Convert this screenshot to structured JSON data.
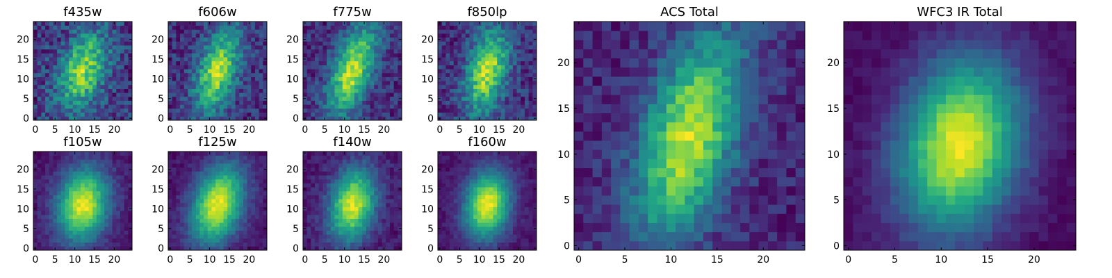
{
  "chart_data": [
    {
      "type": "heatmap",
      "title": "f435w",
      "xticks": [
        "0",
        "5",
        "10",
        "15",
        "20"
      ],
      "yticks": [
        "0",
        "5",
        "10",
        "15",
        "20"
      ],
      "xlim": [
        -0.5,
        24.5
      ],
      "ylim": [
        -0.5,
        24.5
      ],
      "grid": false,
      "colormap": "viridis",
      "source": {
        "center": [
          12,
          12
        ],
        "sigma": [
          4.0,
          7.0
        ],
        "noise": 0.45,
        "tilt": 0.25
      }
    },
    {
      "type": "heatmap",
      "title": "f606w",
      "xticks": [
        "0",
        "5",
        "10",
        "15",
        "20"
      ],
      "yticks": [
        "0",
        "5",
        "10",
        "15",
        "20"
      ],
      "xlim": [
        -0.5,
        24.5
      ],
      "ylim": [
        -0.5,
        24.5
      ],
      "grid": false,
      "colormap": "viridis",
      "source": {
        "center": [
          12,
          12
        ],
        "sigma": [
          3.5,
          7.5
        ],
        "noise": 0.35,
        "tilt": 0.25
      }
    },
    {
      "type": "heatmap",
      "title": "f775w",
      "xticks": [
        "0",
        "5",
        "10",
        "15",
        "20"
      ],
      "yticks": [
        "0",
        "5",
        "10",
        "15",
        "20"
      ],
      "xlim": [
        -0.5,
        24.5
      ],
      "ylim": [
        -0.5,
        24.5
      ],
      "grid": false,
      "colormap": "viridis",
      "source": {
        "center": [
          12,
          12
        ],
        "sigma": [
          3.5,
          8.0
        ],
        "noise": 0.3,
        "tilt": 0.3
      }
    },
    {
      "type": "heatmap",
      "title": "f850lp",
      "xticks": [
        "0",
        "5",
        "10",
        "15",
        "20"
      ],
      "yticks": [
        "0",
        "5",
        "10",
        "15",
        "20"
      ],
      "xlim": [
        -0.5,
        24.5
      ],
      "ylim": [
        -0.5,
        24.5
      ],
      "grid": false,
      "colormap": "viridis",
      "source": {
        "center": [
          12,
          12
        ],
        "sigma": [
          3.5,
          7.5
        ],
        "noise": 0.35,
        "tilt": 0.2
      }
    },
    {
      "type": "heatmap",
      "title": "f105w",
      "xticks": [
        "0",
        "5",
        "10",
        "15",
        "20"
      ],
      "yticks": [
        "0",
        "5",
        "10",
        "15",
        "20"
      ],
      "xlim": [
        -0.5,
        24.5
      ],
      "ylim": [
        -0.5,
        24.5
      ],
      "grid": false,
      "colormap": "viridis",
      "source": {
        "center": [
          12,
          11
        ],
        "sigma": [
          4.5,
          6.5
        ],
        "noise": 0.12,
        "tilt": 0.1
      }
    },
    {
      "type": "heatmap",
      "title": "f125w",
      "xticks": [
        "0",
        "5",
        "10",
        "15",
        "20"
      ],
      "yticks": [
        "0",
        "5",
        "10",
        "15",
        "20"
      ],
      "xlim": [
        -0.5,
        24.5
      ],
      "ylim": [
        -0.5,
        24.5
      ],
      "grid": false,
      "colormap": "viridis",
      "source": {
        "center": [
          12,
          11
        ],
        "sigma": [
          4.5,
          7.0
        ],
        "noise": 0.12,
        "tilt": 0.2
      }
    },
    {
      "type": "heatmap",
      "title": "f140w",
      "xticks": [
        "0",
        "5",
        "10",
        "15",
        "20"
      ],
      "yticks": [
        "0",
        "5",
        "10",
        "15",
        "20"
      ],
      "xlim": [
        -0.5,
        24.5
      ],
      "ylim": [
        -0.5,
        24.5
      ],
      "grid": false,
      "colormap": "viridis",
      "source": {
        "center": [
          12,
          11
        ],
        "sigma": [
          4.0,
          6.5
        ],
        "noise": 0.15,
        "tilt": 0.15
      }
    },
    {
      "type": "heatmap",
      "title": "f160w",
      "xticks": [
        "0",
        "5",
        "10",
        "15",
        "20"
      ],
      "yticks": [
        "0",
        "5",
        "10",
        "15",
        "20"
      ],
      "xlim": [
        -0.5,
        24.5
      ],
      "ylim": [
        -0.5,
        24.5
      ],
      "grid": false,
      "colormap": "viridis",
      "source": {
        "center": [
          12,
          11
        ],
        "sigma": [
          4.0,
          6.0
        ],
        "noise": 0.1,
        "tilt": 0.1
      }
    },
    {
      "type": "heatmap",
      "title": "ACS Total",
      "xticks": [
        "0",
        "5",
        "10",
        "15",
        "20"
      ],
      "yticks": [
        "0",
        "5",
        "10",
        "15",
        "20"
      ],
      "xlim": [
        -0.5,
        24.5
      ],
      "ylim": [
        -0.5,
        24.5
      ],
      "grid": false,
      "colormap": "viridis",
      "source": {
        "center": [
          12,
          12
        ],
        "sigma": [
          3.5,
          8.0
        ],
        "noise": 0.22,
        "tilt": 0.25
      }
    },
    {
      "type": "heatmap",
      "title": "WFC3 IR Total",
      "xticks": [
        "0",
        "5",
        "10",
        "15",
        "20"
      ],
      "yticks": [
        "0",
        "5",
        "10",
        "15",
        "20"
      ],
      "xlim": [
        -0.5,
        24.5
      ],
      "ylim": [
        -0.5,
        24.5
      ],
      "grid": false,
      "colormap": "viridis",
      "source": {
        "center": [
          12,
          11
        ],
        "sigma": [
          4.5,
          6.5
        ],
        "noise": 0.08,
        "tilt": 0.12
      }
    }
  ]
}
